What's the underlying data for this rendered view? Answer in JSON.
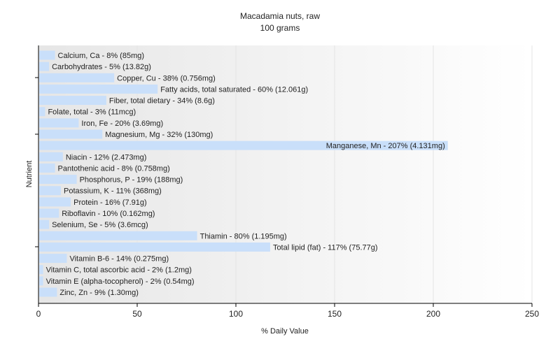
{
  "chart_data": {
    "type": "bar",
    "orientation": "horizontal",
    "title": "Macadamia nuts, raw",
    "subtitle": "100 grams",
    "xlabel": "% Daily Value",
    "ylabel": "Nutrient",
    "xlim": [
      0,
      250
    ],
    "xticks": [
      "0",
      "50",
      "100",
      "150",
      "200",
      "250"
    ],
    "grid": true,
    "bar_color": "#c9dffa",
    "categories": [
      "Calcium, Ca",
      "Carbohydrates",
      "Copper, Cu",
      "Fatty acids, total saturated",
      "Fiber, total dietary",
      "Folate, total",
      "Iron, Fe",
      "Magnesium, Mg",
      "Manganese, Mn",
      "Niacin",
      "Pantothenic acid",
      "Phosphorus, P",
      "Potassium, K",
      "Protein",
      "Riboflavin",
      "Selenium, Se",
      "Thiamin",
      "Total lipid (fat)",
      "Vitamin B-6",
      "Vitamin C, total ascorbic acid",
      "Vitamin E (alpha-tocopherol)",
      "Zinc, Zn"
    ],
    "values": [
      8,
      5,
      38,
      60,
      34,
      3,
      20,
      32,
      207,
      12,
      8,
      19,
      11,
      16,
      10,
      5,
      80,
      117,
      14,
      2,
      2,
      9
    ],
    "labels": [
      "Calcium, Ca - 8% (85mg)",
      "Carbohydrates - 5% (13.82g)",
      "Copper, Cu - 38% (0.756mg)",
      "Fatty acids, total saturated - 60% (12.061g)",
      "Fiber, total dietary - 34% (8.6g)",
      "Folate, total - 3% (11mcg)",
      "Iron, Fe - 20% (3.69mg)",
      "Magnesium, Mg - 32% (130mg)",
      "Manganese, Mn - 207% (4.131mg)",
      "Niacin - 12% (2.473mg)",
      "Pantothenic acid - 8% (0.758mg)",
      "Phosphorus, P - 19% (188mg)",
      "Potassium, K - 11% (368mg)",
      "Protein - 16% (7.91g)",
      "Riboflavin - 10% (0.162mg)",
      "Selenium, Se - 5% (3.6mcg)",
      "Thiamin - 80% (1.195mg)",
      "Total lipid (fat) - 117% (75.77g)",
      "Vitamin B-6 - 14% (0.275mg)",
      "Vitamin C, total ascorbic acid - 2% (1.2mg)",
      "Vitamin E (alpha-tocopherol) - 2% (0.54mg)",
      "Zinc, Zn - 9% (1.30mg)"
    ]
  }
}
